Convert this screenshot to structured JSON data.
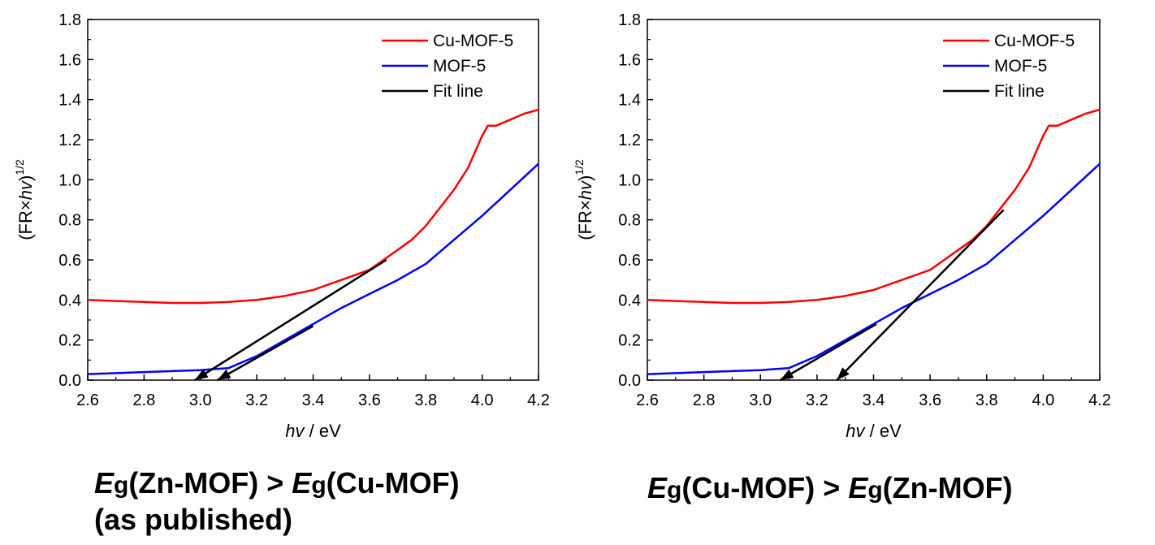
{
  "chart_data": [
    {
      "type": "line",
      "xlabel_italic": "hv",
      "xlabel_rest": " / eV",
      "ylabel_pre": "(FR×",
      "ylabel_italic": "hv",
      "ylabel_post": ")",
      "ylabel_sup": "1/2",
      "xlim": [
        2.6,
        4.2
      ],
      "ylim": [
        0.0,
        1.8
      ],
      "xticks": [
        "2.6",
        "2.8",
        "3.0",
        "3.2",
        "3.4",
        "3.6",
        "3.8",
        "4.0",
        "4.2"
      ],
      "yticks": [
        "0.0",
        "0.2",
        "0.4",
        "0.6",
        "0.8",
        "1.0",
        "1.2",
        "1.4",
        "1.6",
        "1.8"
      ],
      "grid": false,
      "legend_position": "top-right",
      "series": [
        {
          "name": "Cu-MOF-5",
          "color": "#ff0000",
          "x": [
            2.6,
            2.7,
            2.8,
            2.9,
            3.0,
            3.1,
            3.2,
            3.3,
            3.4,
            3.5,
            3.6,
            3.65,
            3.7,
            3.75,
            3.8,
            3.85,
            3.9,
            3.95,
            4.0,
            4.02,
            4.05,
            4.1,
            4.15,
            4.2
          ],
          "y": [
            0.4,
            0.395,
            0.39,
            0.385,
            0.385,
            0.39,
            0.4,
            0.42,
            0.45,
            0.5,
            0.55,
            0.6,
            0.65,
            0.7,
            0.77,
            0.86,
            0.95,
            1.06,
            1.22,
            1.27,
            1.27,
            1.3,
            1.33,
            1.35
          ]
        },
        {
          "name": "MOF-5",
          "color": "#0000ff",
          "x": [
            2.6,
            2.7,
            2.8,
            2.9,
            3.0,
            3.05,
            3.1,
            3.2,
            3.3,
            3.4,
            3.5,
            3.6,
            3.7,
            3.8,
            3.9,
            4.0,
            4.1,
            4.2
          ],
          "y": [
            0.03,
            0.035,
            0.04,
            0.045,
            0.05,
            0.055,
            0.06,
            0.12,
            0.2,
            0.28,
            0.36,
            0.43,
            0.5,
            0.58,
            0.7,
            0.82,
            0.95,
            1.08
          ]
        },
        {
          "name": "Fit line",
          "color": "#000000",
          "fits": [
            {
              "x": [
                2.98,
                3.66
              ],
              "y": [
                0.0,
                0.6
              ]
            },
            {
              "x": [
                3.06,
                3.4
              ],
              "y": [
                0.0,
                0.27
              ]
            }
          ]
        }
      ]
    },
    {
      "type": "line",
      "xlabel_italic": "hv",
      "xlabel_rest": " / eV",
      "ylabel_pre": "(FR×",
      "ylabel_italic": "hv",
      "ylabel_post": ")",
      "ylabel_sup": "1/2",
      "xlim": [
        2.6,
        4.2
      ],
      "ylim": [
        0.0,
        1.8
      ],
      "xticks": [
        "2.6",
        "2.8",
        "3.0",
        "3.2",
        "3.4",
        "3.6",
        "3.8",
        "4.0",
        "4.2"
      ],
      "yticks": [
        "0.0",
        "0.2",
        "0.4",
        "0.6",
        "0.8",
        "1.0",
        "1.2",
        "1.4",
        "1.6",
        "1.8"
      ],
      "grid": false,
      "legend_position": "top-right",
      "series": [
        {
          "name": "Cu-MOF-5",
          "color": "#ff0000",
          "x": [
            2.6,
            2.7,
            2.8,
            2.9,
            3.0,
            3.1,
            3.2,
            3.3,
            3.4,
            3.5,
            3.6,
            3.65,
            3.7,
            3.75,
            3.8,
            3.85,
            3.9,
            3.95,
            4.0,
            4.02,
            4.05,
            4.1,
            4.15,
            4.2
          ],
          "y": [
            0.4,
            0.395,
            0.39,
            0.385,
            0.385,
            0.39,
            0.4,
            0.42,
            0.45,
            0.5,
            0.55,
            0.6,
            0.65,
            0.7,
            0.77,
            0.86,
            0.95,
            1.06,
            1.22,
            1.27,
            1.27,
            1.3,
            1.33,
            1.35
          ]
        },
        {
          "name": "MOF-5",
          "color": "#0000ff",
          "x": [
            2.6,
            2.7,
            2.8,
            2.9,
            3.0,
            3.05,
            3.1,
            3.2,
            3.3,
            3.4,
            3.5,
            3.6,
            3.7,
            3.8,
            3.9,
            4.0,
            4.1,
            4.2
          ],
          "y": [
            0.03,
            0.035,
            0.04,
            0.045,
            0.05,
            0.055,
            0.06,
            0.12,
            0.2,
            0.28,
            0.36,
            0.43,
            0.5,
            0.58,
            0.7,
            0.82,
            0.95,
            1.08
          ]
        },
        {
          "name": "Fit line",
          "color": "#000000",
          "fits": [
            {
              "x": [
                3.07,
                3.41
              ],
              "y": [
                0.0,
                0.28
              ]
            },
            {
              "x": [
                3.27,
                3.86
              ],
              "y": [
                0.0,
                0.85
              ]
            }
          ]
        }
      ]
    }
  ],
  "captions": {
    "left": {
      "e1": "E",
      "s1": "g",
      "t1": "(Zn-MOF) > ",
      "e2": "E",
      "s2": "g",
      "t2": "(Cu-MOF)",
      "line2": "(as published)"
    },
    "right": {
      "e1": "E",
      "s1": "g",
      "t1": "(Cu-MOF) > ",
      "e2": "E",
      "s2": "g",
      "t2": "(Zn-MOF)"
    }
  }
}
